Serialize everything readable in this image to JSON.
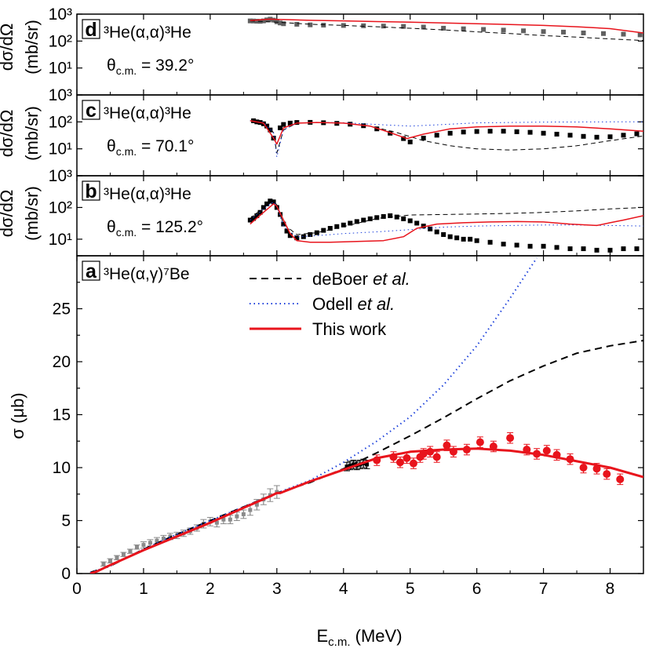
{
  "chart_data": [
    {
      "panel": "d",
      "type": "scatter",
      "reaction": "³He(α,α)³He",
      "angle": "θc.m. = 39.2°",
      "ylabel": "dσ/dΩ (mb/sr)",
      "yscale": "log",
      "ylim": [
        1,
        1000
      ],
      "xlim": [
        0,
        8.5
      ],
      "yticks": [
        "10¹",
        "10²",
        "10³"
      ],
      "series": [
        {
          "name": "data",
          "color": "#606060",
          "marker": "square",
          "x": [
            2.6,
            2.65,
            2.7,
            2.75,
            2.8,
            2.85,
            2.9,
            2.95,
            3.0,
            3.05,
            3.1,
            3.3,
            3.5,
            3.7,
            4.0,
            4.3,
            4.6,
            4.9,
            5.2,
            5.5,
            5.8,
            6.1,
            6.4,
            6.7,
            7.0,
            7.3,
            7.6,
            7.9,
            8.2,
            8.45
          ],
          "y": [
            560,
            555,
            545,
            540,
            560,
            610,
            650,
            600,
            520,
            470,
            440,
            420,
            400,
            390,
            380,
            370,
            360,
            350,
            330,
            300,
            285,
            270,
            255,
            240,
            225,
            215,
            200,
            190,
            180,
            170
          ]
        },
        {
          "name": "deBoer et al.",
          "color": "#000000",
          "dash": "6,4",
          "x": [
            2.6,
            3.0,
            3.5,
            4.0,
            4.5,
            5.0,
            5.5,
            6.0,
            6.5,
            7.0,
            7.5,
            8.0,
            8.5
          ],
          "y": [
            560,
            500,
            420,
            380,
            340,
            300,
            260,
            220,
            190,
            160,
            140,
            120,
            105
          ]
        },
        {
          "name": "This work",
          "color": "#e8141c",
          "x": [
            2.6,
            2.9,
            3.0,
            3.2,
            3.5,
            4.0,
            4.5,
            5.0,
            5.5,
            6.0,
            6.5,
            7.0,
            7.5,
            8.0,
            8.5
          ],
          "y": [
            580,
            650,
            640,
            620,
            590,
            560,
            530,
            500,
            470,
            440,
            410,
            380,
            340,
            290,
            200
          ]
        }
      ]
    },
    {
      "panel": "c",
      "type": "scatter",
      "reaction": "³He(α,α)³He",
      "angle": "θc.m. = 70.1°",
      "ylabel": "dσ/dΩ (mb/sr)",
      "yscale": "log",
      "ylim": [
        1,
        1000
      ],
      "xlim": [
        0,
        8.5
      ],
      "yticks": [
        "10¹",
        "10²",
        "10³"
      ],
      "series": [
        {
          "name": "data",
          "color": "#000000",
          "marker": "square",
          "x": [
            2.65,
            2.7,
            2.75,
            2.8,
            2.85,
            2.9,
            2.95,
            3.05,
            3.1,
            3.2,
            3.3,
            3.5,
            3.7,
            3.9,
            4.1,
            4.3,
            4.5,
            4.7,
            4.9,
            5.0,
            5.2,
            5.4,
            5.6,
            5.8,
            6.0,
            6.2,
            6.4,
            6.6,
            6.8,
            7.0,
            7.2,
            7.4,
            7.6,
            7.8,
            8.0,
            8.2,
            8.4
          ],
          "y": [
            110,
            100,
            95,
            85,
            70,
            50,
            25,
            60,
            80,
            90,
            95,
            96,
            93,
            88,
            82,
            72,
            55,
            38,
            24,
            18,
            25,
            32,
            38,
            42,
            44,
            45,
            45,
            43,
            41,
            38,
            35,
            32,
            29,
            27,
            28,
            32,
            36
          ]
        },
        {
          "name": "deBoer et al.",
          "color": "#000000",
          "dash": "6,4",
          "x": [
            2.6,
            2.8,
            2.95,
            3.0,
            3.1,
            3.3,
            3.6,
            4.0,
            4.4,
            4.8,
            5.2,
            5.6,
            6.0,
            6.5,
            7.0,
            7.5,
            8.0,
            8.5
          ],
          "y": [
            110,
            95,
            40,
            7,
            50,
            90,
            95,
            90,
            70,
            40,
            20,
            13,
            10,
            9,
            10,
            13,
            20,
            30
          ]
        },
        {
          "name": "Odell et al.",
          "color": "#1a3fdb",
          "dash": "1.5,3.5",
          "x": [
            2.6,
            2.8,
            2.95,
            3.0,
            3.1,
            3.3,
            3.6,
            4.0,
            4.5,
            5.0,
            5.5,
            6.0,
            7.0,
            8.0,
            8.5
          ],
          "y": [
            110,
            95,
            40,
            5,
            50,
            90,
            96,
            93,
            80,
            70,
            80,
            92,
            98,
            100,
            100
          ]
        },
        {
          "name": "This work",
          "color": "#e8141c",
          "x": [
            2.6,
            2.8,
            2.95,
            3.0,
            3.1,
            3.3,
            3.6,
            4.0,
            4.4,
            4.7,
            4.95,
            5.2,
            5.6,
            6.0,
            6.5,
            7.0,
            7.5,
            8.0,
            8.5
          ],
          "y": [
            110,
            90,
            25,
            15,
            60,
            90,
            95,
            90,
            70,
            40,
            24,
            35,
            55,
            65,
            70,
            70,
            65,
            55,
            45
          ]
        }
      ]
    },
    {
      "panel": "b",
      "type": "scatter",
      "reaction": "³He(α,α)³He",
      "angle": "θc.m. = 125.2°",
      "ylabel": "dσ/dΩ (mb/sr)",
      "yscale": "log",
      "ylim": [
        3,
        1000
      ],
      "xlim": [
        0,
        8.5
      ],
      "yticks": [
        "10¹",
        "10²",
        "10³"
      ],
      "series": [
        {
          "name": "data",
          "color": "#000000",
          "marker": "square",
          "x": [
            2.6,
            2.65,
            2.7,
            2.75,
            2.8,
            2.85,
            2.9,
            2.95,
            3.0,
            3.05,
            3.1,
            3.15,
            3.2,
            3.3,
            3.4,
            3.5,
            3.6,
            3.7,
            3.8,
            3.9,
            4.0,
            4.1,
            4.2,
            4.3,
            4.4,
            4.5,
            4.6,
            4.7,
            4.8,
            4.9,
            5.0,
            5.1,
            5.2,
            5.3,
            5.4,
            5.5,
            5.6,
            5.7,
            5.8,
            5.9,
            6.0,
            6.2,
            6.4,
            6.6,
            6.8,
            7.0,
            7.2,
            7.4,
            7.6,
            7.8,
            8.0,
            8.2,
            8.4
          ],
          "y": [
            40,
            45,
            55,
            70,
            100,
            130,
            160,
            150,
            100,
            60,
            30,
            18,
            13,
            11,
            12,
            14,
            16,
            19,
            22,
            25,
            28,
            32,
            36,
            40,
            44,
            48,
            52,
            55,
            50,
            44,
            38,
            32,
            26,
            21,
            17,
            14,
            12,
            11,
            10,
            10,
            9,
            8,
            7,
            6.5,
            6,
            6,
            5.5,
            5,
            5,
            4.5,
            4.5,
            5,
            5
          ]
        },
        {
          "name": "deBoer et al.",
          "color": "#000000",
          "dash": "6,4",
          "x": [
            2.6,
            2.8,
            2.95,
            3.0,
            3.1,
            3.3,
            3.6,
            4.0,
            4.5,
            5.0,
            5.5,
            6.0,
            6.5,
            7.0,
            7.5,
            8.0,
            8.5
          ],
          "y": [
            45,
            100,
            160,
            120,
            30,
            14,
            16,
            25,
            45,
            58,
            60,
            62,
            65,
            70,
            78,
            90,
            100
          ]
        },
        {
          "name": "Odell et al.",
          "color": "#1a3fdb",
          "dash": "1.5,3.5",
          "x": [
            2.6,
            2.8,
            2.95,
            3.0,
            3.1,
            3.3,
            3.6,
            4.0,
            4.5,
            5.0,
            5.5,
            6.0,
            6.5,
            7.0,
            7.5,
            8.0,
            8.5
          ],
          "y": [
            40,
            90,
            150,
            110,
            25,
            12,
            13,
            15,
            17,
            20,
            24,
            26,
            27,
            28,
            28,
            27,
            26
          ]
        },
        {
          "name": "This work",
          "color": "#e8141c",
          "x": [
            2.6,
            2.8,
            2.95,
            3.0,
            3.1,
            3.2,
            3.3,
            3.5,
            3.8,
            4.2,
            4.6,
            4.9,
            5.1,
            5.4,
            5.8,
            6.2,
            6.6,
            7.0,
            7.4,
            7.8,
            8.0,
            8.2,
            8.5
          ],
          "y": [
            30,
            70,
            130,
            110,
            40,
            15,
            9,
            8,
            8,
            8.5,
            9,
            12,
            22,
            30,
            33,
            35,
            36,
            35,
            30,
            27,
            33,
            40,
            55
          ]
        }
      ]
    },
    {
      "panel": "a",
      "type": "scatter",
      "reaction": "³He(α,γ)⁷Be",
      "xlabel": "Ec.m. (MeV)",
      "ylabel": "σ (μb)",
      "xlim": [
        0,
        8.5
      ],
      "ylim": [
        0,
        30
      ],
      "xticks": [
        0,
        1,
        2,
        3,
        4,
        5,
        6,
        7,
        8
      ],
      "yticks": [
        0,
        5,
        10,
        15,
        20,
        25
      ],
      "legend": {
        "placement": "top-center",
        "entries": [
          "deBoer et al.",
          "Odell et al.",
          "This work"
        ]
      },
      "series": [
        {
          "name": "gray data",
          "color": "#8a8a8a",
          "marker": "square",
          "x": [
            0.4,
            0.5,
            0.6,
            0.7,
            0.8,
            0.9,
            1.0,
            1.1,
            1.2,
            1.3,
            1.4,
            1.5,
            1.6,
            1.7,
            1.8,
            1.9,
            2.0,
            2.1,
            2.2,
            2.3,
            2.4,
            2.5,
            2.6,
            2.7,
            2.8,
            2.9,
            3.0
          ],
          "y": [
            0.9,
            1.2,
            1.5,
            1.8,
            2.1,
            2.5,
            2.7,
            2.9,
            3.1,
            3.3,
            3.5,
            3.6,
            3.8,
            4.0,
            4.3,
            4.7,
            4.9,
            4.8,
            5.1,
            5.1,
            5.4,
            5.6,
            6.0,
            6.5,
            7.0,
            7.4,
            7.7
          ],
          "err": [
            0.2,
            0.2,
            0.2,
            0.2,
            0.2,
            0.2,
            0.3,
            0.3,
            0.3,
            0.3,
            0.3,
            0.3,
            0.3,
            0.3,
            0.3,
            0.4,
            0.4,
            0.4,
            0.4,
            0.4,
            0.4,
            0.4,
            0.5,
            0.5,
            0.5,
            0.6,
            0.6
          ]
        },
        {
          "name": "black data",
          "color": "#000000",
          "marker": "square",
          "x": [
            4.05,
            4.1,
            4.15,
            4.2,
            4.25,
            4.3,
            4.35
          ],
          "y": [
            10.1,
            10.2,
            10.3,
            10.2,
            10.3,
            10.4,
            10.3
          ],
          "err": [
            0.4,
            0.4,
            0.4,
            0.4,
            0.4,
            0.4,
            0.4
          ]
        },
        {
          "name": "This work data",
          "color": "#e8141c",
          "marker": "circle",
          "x": [
            4.5,
            4.75,
            4.85,
            4.95,
            5.05,
            5.15,
            5.2,
            5.3,
            5.4,
            5.55,
            5.65,
            5.85,
            6.05,
            6.25,
            6.5,
            6.75,
            6.9,
            7.05,
            7.2,
            7.4,
            7.6,
            7.8,
            7.95,
            8.15
          ],
          "y": [
            10.7,
            11.0,
            10.5,
            10.9,
            10.4,
            11.0,
            11.3,
            11.5,
            11.0,
            12.1,
            11.5,
            11.7,
            12.4,
            12.0,
            12.8,
            11.7,
            11.3,
            11.6,
            11.2,
            10.8,
            10.0,
            9.9,
            9.4,
            8.9
          ],
          "err": [
            0.5,
            0.5,
            0.5,
            0.5,
            0.5,
            0.5,
            0.5,
            0.5,
            0.5,
            0.5,
            0.5,
            0.5,
            0.5,
            0.5,
            0.5,
            0.5,
            0.5,
            0.5,
            0.5,
            0.5,
            0.5,
            0.5,
            0.5,
            0.5
          ]
        },
        {
          "name": "deBoer et al.",
          "color": "#000000",
          "dash": "9,6",
          "x": [
            0.2,
            0.5,
            1.0,
            1.5,
            2.0,
            2.5,
            3.0,
            3.5,
            4.0,
            4.5,
            5.0,
            5.5,
            6.0,
            6.5,
            7.0,
            7.5,
            8.0,
            8.5
          ],
          "y": [
            0.1,
            0.7,
            2.3,
            3.7,
            5.0,
            6.3,
            7.6,
            8.6,
            9.9,
            11.4,
            13.0,
            14.7,
            16.5,
            18.2,
            19.6,
            20.8,
            21.5,
            22.0
          ]
        },
        {
          "name": "Odell et al.",
          "color": "#1a3fdb",
          "dash": "1.5,4",
          "x": [
            0.2,
            0.5,
            1.0,
            1.5,
            2.0,
            2.5,
            3.0,
            3.5,
            4.0,
            4.5,
            5.0,
            5.5,
            6.0,
            6.5,
            6.9
          ],
          "y": [
            0.1,
            0.7,
            2.3,
            3.7,
            5.0,
            6.3,
            7.6,
            8.8,
            10.5,
            12.5,
            14.8,
            17.8,
            21.5,
            26.0,
            29.8
          ]
        },
        {
          "name": "This work",
          "color": "#e8141c",
          "x": [
            0.2,
            0.3,
            0.5,
            0.75,
            1.0,
            1.5,
            2.0,
            2.5,
            2.9,
            3.0,
            3.05,
            3.5,
            4.0,
            4.5,
            5.0,
            5.5,
            6.0,
            6.5,
            7.0,
            7.5,
            8.0,
            8.5
          ],
          "y": [
            0.0,
            0.2,
            0.8,
            1.5,
            2.2,
            3.5,
            4.8,
            6.2,
            7.3,
            7.6,
            7.6,
            8.7,
            9.8,
            10.9,
            11.5,
            11.7,
            11.8,
            11.6,
            11.2,
            10.6,
            10.0,
            9.1
          ]
        }
      ]
    }
  ]
}
